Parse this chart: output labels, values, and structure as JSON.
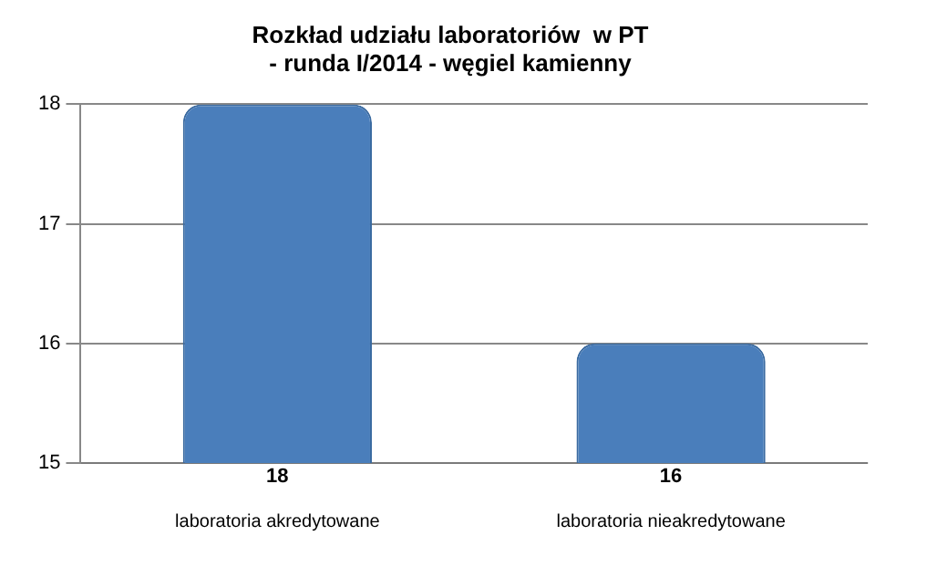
{
  "chart_data": {
    "type": "bar",
    "title": "Rozkład udziału laboratoriów  w PT\n- runda I/2014 - węgiel kamienny",
    "categories": [
      "laboratoria akredytowane",
      "laboratoria nieakredytowane"
    ],
    "values": [
      18,
      16
    ],
    "color": "#4a7ebb",
    "ylim": [
      15,
      18
    ],
    "yticks": [
      15,
      16,
      17,
      18
    ],
    "grid": "y",
    "data_labels": true
  }
}
